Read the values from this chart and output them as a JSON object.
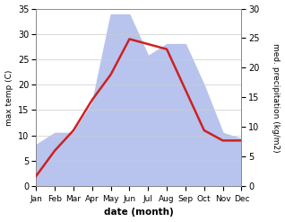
{
  "months": [
    "Jan",
    "Feb",
    "Mar",
    "Apr",
    "May",
    "Jun",
    "Jul",
    "Aug",
    "Sep",
    "Oct",
    "Nov",
    "Dec"
  ],
  "temp": [
    2,
    7,
    11,
    17,
    22,
    29,
    28,
    27,
    19,
    11,
    9,
    9
  ],
  "precip": [
    7,
    9,
    9,
    14,
    29,
    29,
    22,
    24,
    24,
    17,
    9,
    8
  ],
  "temp_color": "#cc2222",
  "precip_color": "#b8c4ee",
  "temp_ylim": [
    0,
    35
  ],
  "precip_ylim": [
    0,
    30
  ],
  "temp_yticks": [
    0,
    5,
    10,
    15,
    20,
    25,
    30,
    35
  ],
  "precip_yticks": [
    0,
    5,
    10,
    15,
    20,
    25,
    30
  ],
  "xlabel": "date (month)",
  "ylabel_left": "max temp (C)",
  "ylabel_right": "med. precipitation (kg/m2)",
  "background_color": "#ffffff"
}
